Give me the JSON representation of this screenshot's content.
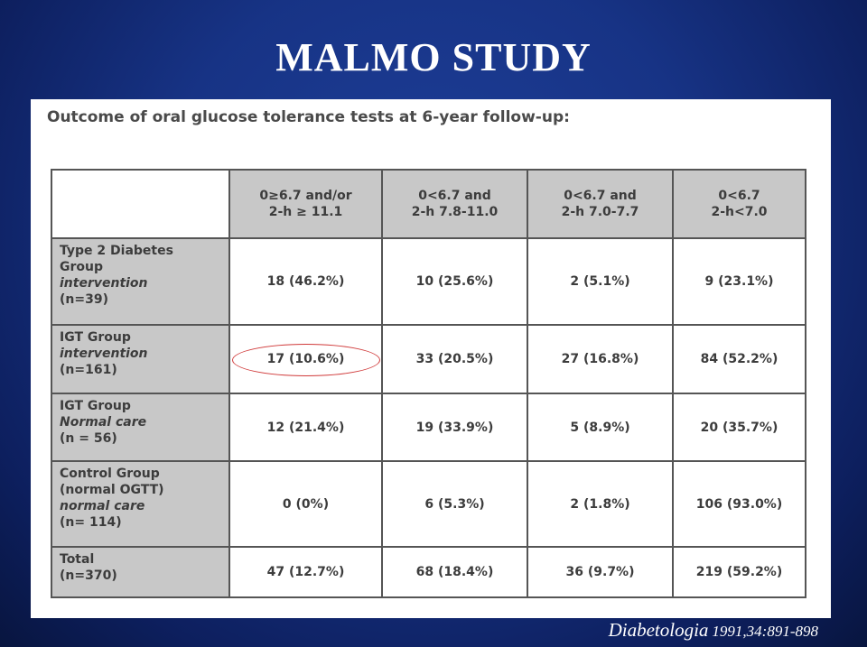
{
  "slide": {
    "title": "MALMO STUDY",
    "citation_journal": "Diabetologia",
    "citation_ref": "1991,34:891-898"
  },
  "table": {
    "caption": "Outcome of oral glucose tolerance tests at 6-year follow-up:",
    "columns": [
      {
        "line1": "0≥6.7 and/or",
        "line2": "2-h ≥ 11.1"
      },
      {
        "line1": "0<6.7 and",
        "line2": "2-h 7.8-11.0"
      },
      {
        "line1": "0<6.7 and",
        "line2": "2-h 7.0-7.7"
      },
      {
        "line1": "0<6.7",
        "line2": "2-h<7.0"
      }
    ],
    "rows": [
      {
        "label_lines": [
          {
            "text": "Type 2 Diabetes",
            "italic": false
          },
          {
            "text": "Group",
            "italic": false
          },
          {
            "text": "intervention",
            "italic": true
          },
          {
            "text": "(n=39)",
            "italic": false
          }
        ],
        "cells": [
          "18 (46.2%)",
          "10 (25.6%)",
          "2 (5.1%)",
          "9 (23.1%)"
        ]
      },
      {
        "label_lines": [
          {
            "text": "IGT Group",
            "italic": false
          },
          {
            "text": "intervention",
            "italic": true
          },
          {
            "text": "(n=161)",
            "italic": false
          }
        ],
        "cells": [
          "17 (10.6%)",
          "33 (20.5%)",
          "27 (16.8%)",
          "84 (52.2%)"
        ]
      },
      {
        "label_lines": [
          {
            "text": "IGT Group",
            "italic": false
          },
          {
            "text": "Normal care",
            "italic": true
          },
          {
            "text": "(n = 56)",
            "italic": false
          }
        ],
        "cells": [
          "12 (21.4%)",
          "19 (33.9%)",
          "5 (8.9%)",
          "20 (35.7%)"
        ]
      },
      {
        "label_lines": [
          {
            "text": "Control Group",
            "italic": false
          },
          {
            "text": "(normal OGTT)",
            "italic": false
          },
          {
            "text": "normal care",
            "italic": true
          },
          {
            "text": "(n= 114)",
            "italic": false
          }
        ],
        "cells": [
          "0 (0%)",
          "6 (5.3%)",
          "2 (1.8%)",
          "106 (93.0%)"
        ]
      },
      {
        "label_lines": [
          {
            "text": "Total",
            "italic": false
          },
          {
            "text": "(n=370)",
            "italic": false
          }
        ],
        "cells": [
          "47 (12.7%)",
          "68 (18.4%)",
          "36 (9.7%)",
          "219 (59.2%)"
        ]
      }
    ],
    "highlight_color": "#d03a3a"
  }
}
